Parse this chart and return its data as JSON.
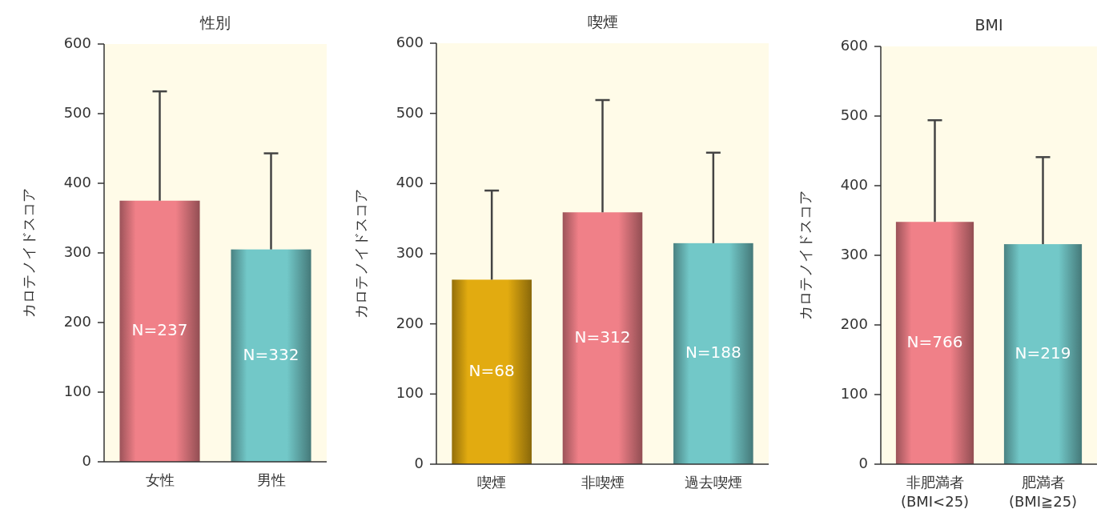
{
  "chart_data": [
    {
      "type": "bar",
      "title": "性別",
      "ylabel": "カロテノイドスコア",
      "categories": [
        "女性",
        "男性"
      ],
      "ylim": [
        0,
        600
      ],
      "yticks": [
        0,
        100,
        200,
        300,
        400,
        500,
        600
      ],
      "grid": false,
      "colors": [
        "#f08088",
        "#72c8c8"
      ],
      "values": [
        375,
        305
      ],
      "errors": [
        [
          375,
          532
        ],
        [
          305,
          443
        ]
      ],
      "annotations": [
        "N=237",
        "N=332"
      ]
    },
    {
      "type": "bar",
      "title": "喫煙",
      "ylabel": "カロテノイドスコア",
      "categories": [
        "喫煙",
        "非喫煙",
        "過去喫煙"
      ],
      "ylim": [
        0,
        600
      ],
      "yticks": [
        0,
        100,
        200,
        300,
        400,
        500,
        600
      ],
      "grid": false,
      "colors": [
        "#e2ab10",
        "#f08088",
        "#72c8c8"
      ],
      "values": [
        263,
        359,
        315
      ],
      "errors": [
        [
          263,
          390
        ],
        [
          359,
          519
        ],
        [
          315,
          444
        ]
      ],
      "annotations": [
        "N=68",
        "N=312",
        "N=188"
      ]
    },
    {
      "type": "bar",
      "title": "BMI",
      "ylabel": "カロテノイドスコア",
      "categories": [
        "非肥満者\n(BMI<25)",
        "肥満者\n(BMI≧25)"
      ],
      "ylim": [
        0,
        600
      ],
      "yticks": [
        0,
        100,
        200,
        300,
        400,
        500,
        600
      ],
      "grid": false,
      "colors": [
        "#f08088",
        "#72c8c8"
      ],
      "values": [
        348,
        316
      ],
      "errors": [
        [
          348,
          494
        ],
        [
          316,
          441
        ]
      ],
      "annotations": [
        "N=766",
        "N=219"
      ]
    }
  ]
}
